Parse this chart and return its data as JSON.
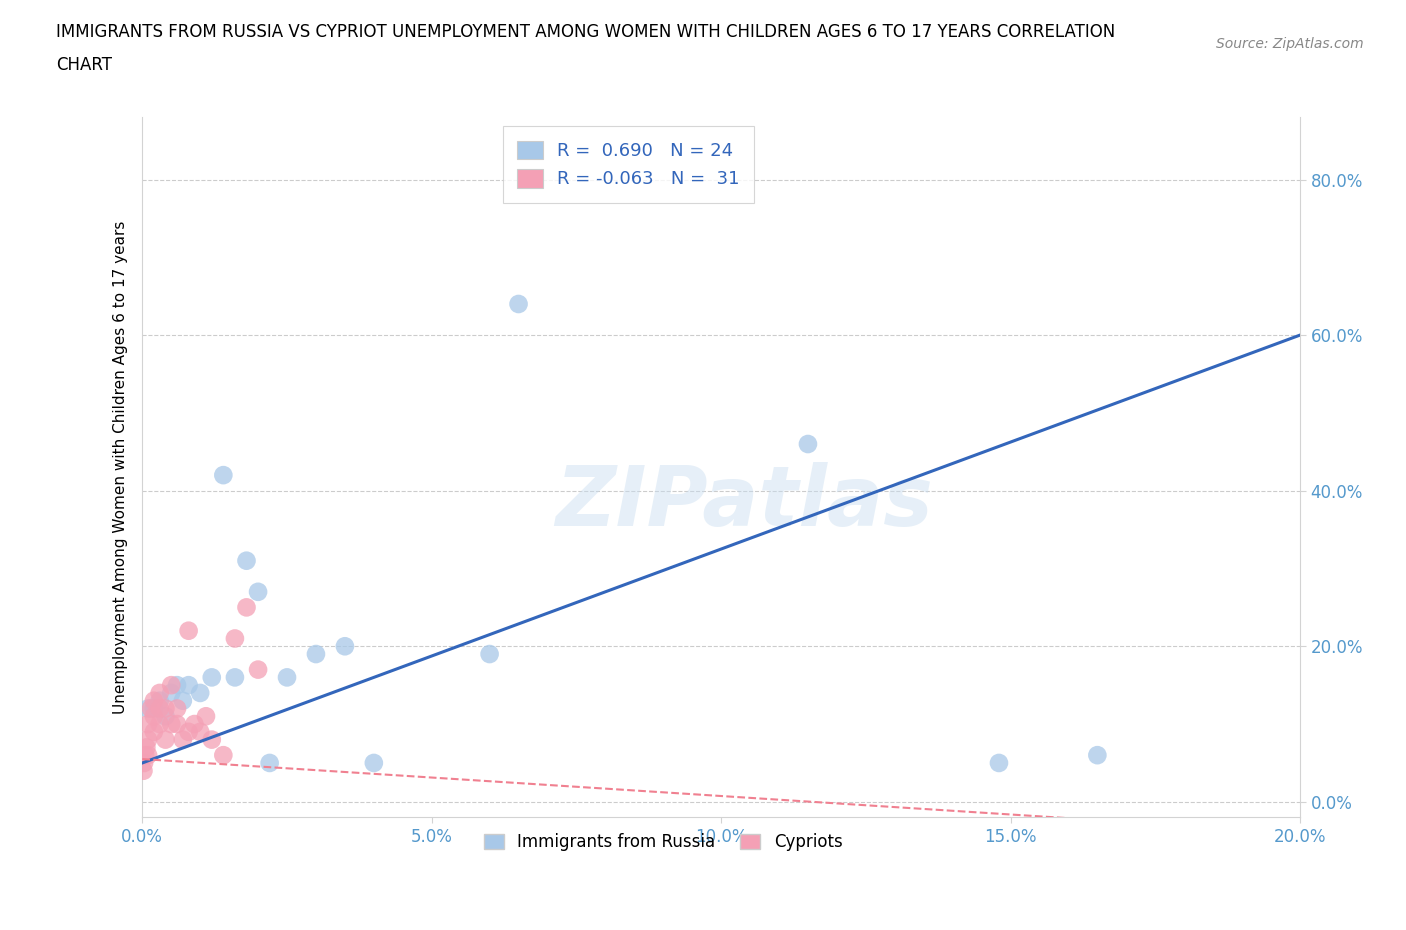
{
  "title_line1": "IMMIGRANTS FROM RUSSIA VS CYPRIOT UNEMPLOYMENT AMONG WOMEN WITH CHILDREN AGES 6 TO 17 YEARS CORRELATION",
  "title_line2": "CHART",
  "source": "Source: ZipAtlas.com",
  "ylabel": "Unemployment Among Women with Children Ages 6 to 17 years",
  "xlim": [
    0.0,
    0.2
  ],
  "ylim": [
    -0.02,
    0.88
  ],
  "watermark": "ZIPatlas",
  "legend_russia_R": "0.690",
  "legend_russia_N": "24",
  "legend_cyprus_R": "-0.063",
  "legend_cyprus_N": "31",
  "color_russia": "#a8c8e8",
  "color_cyprus": "#f4a0b5",
  "trendline_russia_color": "#3366bb",
  "trendline_cyprus_color": "#f08090",
  "russia_x": [
    0.001,
    0.002,
    0.003,
    0.004,
    0.005,
    0.006,
    0.007,
    0.008,
    0.01,
    0.012,
    0.014,
    0.016,
    0.018,
    0.02,
    0.022,
    0.025,
    0.03,
    0.035,
    0.04,
    0.06,
    0.065,
    0.115,
    0.148,
    0.165
  ],
  "russia_y": [
    0.12,
    0.12,
    0.13,
    0.11,
    0.14,
    0.15,
    0.13,
    0.15,
    0.14,
    0.16,
    0.42,
    0.16,
    0.31,
    0.27,
    0.05,
    0.16,
    0.19,
    0.2,
    0.05,
    0.19,
    0.64,
    0.46,
    0.05,
    0.06
  ],
  "cyprus_x": [
    0.0002,
    0.0003,
    0.0005,
    0.0007,
    0.001,
    0.001,
    0.001,
    0.0015,
    0.002,
    0.002,
    0.002,
    0.003,
    0.003,
    0.003,
    0.004,
    0.004,
    0.005,
    0.005,
    0.006,
    0.006,
    0.007,
    0.008,
    0.008,
    0.009,
    0.01,
    0.011,
    0.012,
    0.014,
    0.016,
    0.018,
    0.02
  ],
  "cyprus_y": [
    0.04,
    0.05,
    0.06,
    0.07,
    0.06,
    0.08,
    0.1,
    0.12,
    0.09,
    0.11,
    0.13,
    0.1,
    0.12,
    0.14,
    0.08,
    0.12,
    0.1,
    0.15,
    0.1,
    0.12,
    0.08,
    0.09,
    0.22,
    0.1,
    0.09,
    0.11,
    0.08,
    0.06,
    0.21,
    0.25,
    0.17
  ]
}
